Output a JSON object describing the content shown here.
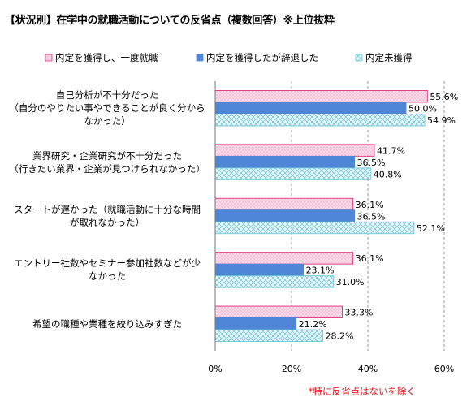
{
  "title": "【状況別】在学中の就職活動についての反省点（複数回答）※上位抜粋",
  "footnote": "*特に反省点はないを除く",
  "colors": {
    "series_pink_fill": "#f8c4da",
    "series_pink_stroke": "#e0337a",
    "series_blue_fill": "#4f86d6",
    "series_light_fill": "#e6f7fb",
    "series_light_pattern": "#6ec7d8",
    "grid": "#9a9a9a"
  },
  "chart_data": {
    "type": "bar",
    "orientation": "horizontal",
    "categories": [
      "自己分析が不十分だった\n（自分のやりたい事やできることが良く分から\nなかった）",
      "業界研究・企業研究が不十分だった\n（行きたい業界・企業が見つけられなかった）",
      "スタートが遅かった（就職活動に十分な時間\nが取れなかった）",
      "エントリー社数やセミナー参加社数などが少\nなかった",
      "希望の職種や業種を絞り込みすぎた"
    ],
    "series": [
      {
        "name": "内定を獲得し、一度就職",
        "values": [
          55.6,
          41.7,
          36.1,
          36.1,
          33.3
        ],
        "labels": [
          "55.6%",
          "41.7%",
          "36.1%",
          "36.1%",
          "33.3%"
        ]
      },
      {
        "name": "内定を獲得したが辞退した",
        "values": [
          50.0,
          36.5,
          36.5,
          23.1,
          21.2
        ],
        "labels": [
          "50.0%",
          "36.5%",
          "36.5%",
          "23.1%",
          "21.2%"
        ]
      },
      {
        "name": "内定未獲得",
        "values": [
          54.9,
          40.8,
          52.1,
          31.0,
          28.2
        ],
        "labels": [
          "54.9%",
          "40.8%",
          "52.1%",
          "31.0%",
          "28.2%"
        ]
      }
    ],
    "xlim": [
      0,
      60
    ],
    "xticks": [
      "0%",
      "20%",
      "40%",
      "60%"
    ],
    "xtick_values": [
      0,
      20,
      40,
      60
    ],
    "grid": true,
    "legend_position": "top"
  }
}
